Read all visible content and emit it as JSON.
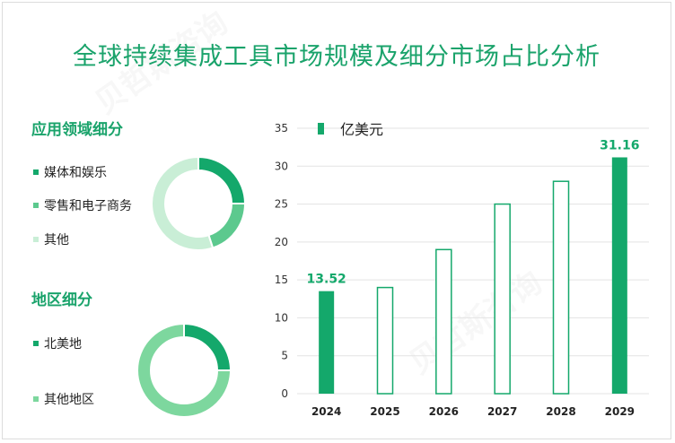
{
  "title": "全球持续集成工具市场规模及细分市场占比分析",
  "watermark": "贝哲斯咨询",
  "application": {
    "title": "应用领域细分",
    "items": [
      {
        "label": "媒体和娱乐",
        "color": "#14a86b",
        "value": 25
      },
      {
        "label": "零售和电子商务",
        "color": "#5cc98e",
        "value": 20
      },
      {
        "label": "其他",
        "color": "#c9eed6",
        "value": 55
      }
    ]
  },
  "region": {
    "title": "地区细分",
    "items": [
      {
        "label": "北美地",
        "color": "#14a86b",
        "value": 25
      },
      {
        "label": "其他地区",
        "color": "#7dd79e",
        "value": 75
      }
    ]
  },
  "chart_data": {
    "type": "bar",
    "legend": "亿美元",
    "categories": [
      "2024",
      "2025",
      "2026",
      "2027",
      "2028",
      "2029"
    ],
    "values": [
      13.52,
      14.0,
      19.0,
      25.0,
      28.0,
      31.16
    ],
    "filled": [
      true,
      false,
      false,
      false,
      false,
      true
    ],
    "labels": [
      "13.52",
      "",
      "",
      "",
      "",
      "31.16"
    ],
    "yticks": [
      0,
      5,
      10,
      15,
      20,
      25,
      30,
      35
    ],
    "ylim": [
      0,
      35
    ],
    "color": "#14a86b",
    "grid": true
  }
}
